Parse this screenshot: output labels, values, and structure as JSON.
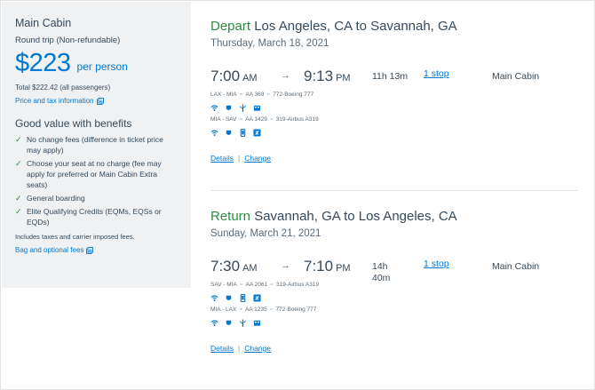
{
  "summary": {
    "cabin": "Main Cabin",
    "trip_type": "Round trip (Non-refundable)",
    "price": "$223",
    "per_person": "per person",
    "total": "Total $222.42 (all passengers)",
    "price_tax_link": "Price and tax information",
    "benefits_title": "Good value with benefits",
    "benefits": [
      "No change fees (difference in ticket price may apply)",
      "Choose your seat at no charge (fee may apply for preferred or Main Cabin Extra seats)",
      "General boarding",
      "Elite Qualifying Credits (EQMs, EQSs or EQDs)"
    ],
    "fees_note": "Includes taxes and carrier imposed fees.",
    "bag_fees_link": "Bag and optional fees"
  },
  "depart": {
    "label": "Depart",
    "route": "Los Angeles, CA to Savannah, GA",
    "date": "Thursday, March 18, 2021",
    "dep_time": "7:00",
    "dep_ampm": "AM",
    "arr_time": "9:13",
    "arr_ampm": "PM",
    "duration": "11h 13m",
    "stops": "1 stop",
    "cabin": "Main Cabin",
    "legs": [
      {
        "route": "LAX - MIA",
        "flight": "AA 369",
        "aircraft": "772-Boeing 777"
      },
      {
        "route": "MIA - SAV",
        "flight": "AA 1429",
        "aircraft": "319-Airbus A319"
      }
    ],
    "details": "Details",
    "change": "Change"
  },
  "return": {
    "label": "Return",
    "route": "Savannah, GA to Los Angeles, CA",
    "date": "Sunday, March 21, 2021",
    "dep_time": "7:30",
    "dep_ampm": "AM",
    "arr_time": "7:10",
    "arr_ampm": "PM",
    "duration_line1": "14h",
    "duration_line2": "40m",
    "stops": "1 stop",
    "cabin": "Main Cabin",
    "legs": [
      {
        "route": "SAV - MIA",
        "flight": "AA 2061",
        "aircraft": "319-Airbus A319"
      },
      {
        "route": "MIA - LAX",
        "flight": "AA 1235",
        "aircraft": "772-Boeing 777"
      }
    ],
    "details": "Details",
    "change": "Change"
  },
  "colors": {
    "accent_blue": "#0078d2",
    "direction_green": "#2e8b3f",
    "text": "#36495a",
    "panel_bg": "#eff1f3"
  },
  "icons": {
    "leg1_amenities": [
      "wifi-icon",
      "power-icon",
      "usb-icon",
      "entertainment-icon"
    ],
    "leg2_amenities": [
      "wifi-icon",
      "power-icon",
      "mobile-device-icon",
      "streaming-icon"
    ]
  }
}
